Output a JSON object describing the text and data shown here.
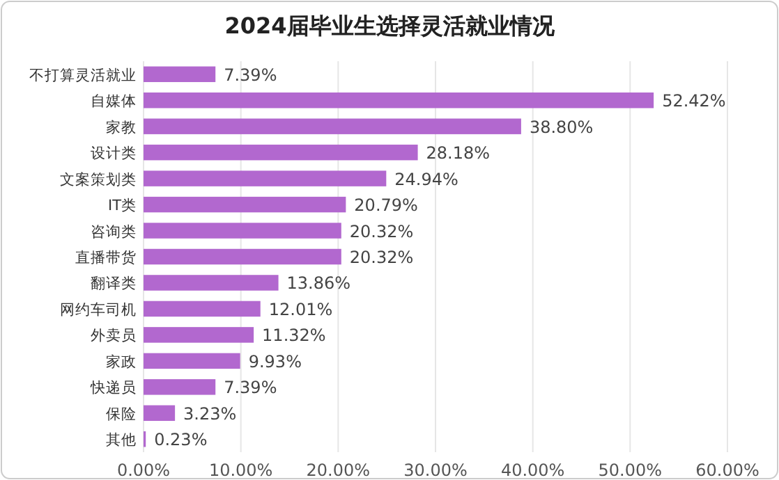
{
  "chart_data": {
    "type": "bar",
    "orientation": "horizontal",
    "title": "2024届毕业生选择灵活就业情况",
    "categories": [
      "不打算灵活就业",
      "自媒体",
      "家教",
      "设计类",
      "文案策划类",
      "IT类",
      "咨询类",
      "直播带货",
      "翻译类",
      "网约车司机",
      "外卖员",
      "家政",
      "快递员",
      "保险",
      "其他"
    ],
    "values": [
      7.39,
      52.42,
      38.8,
      28.18,
      24.94,
      20.79,
      20.32,
      20.32,
      13.86,
      12.01,
      11.32,
      9.93,
      7.39,
      3.23,
      0.23
    ],
    "value_labels": [
      "7.39%",
      "52.42%",
      "38.80%",
      "28.18%",
      "24.94%",
      "20.79%",
      "20.32%",
      "20.32%",
      "13.86%",
      "12.01%",
      "11.32%",
      "9.93%",
      "7.39%",
      "3.23%",
      "0.23%"
    ],
    "color": "#b268cf",
    "xlim": [
      0,
      60
    ],
    "xticks": [
      {
        "value": 0,
        "label": "0.00%"
      },
      {
        "value": 10,
        "label": "10.00%"
      },
      {
        "value": 20,
        "label": "20.00%"
      },
      {
        "value": 30,
        "label": "30.00%"
      },
      {
        "value": 40,
        "label": "40.00%"
      },
      {
        "value": 50,
        "label": "50.00%"
      },
      {
        "value": 60,
        "label": "60.00%"
      }
    ],
    "grid": "x"
  }
}
